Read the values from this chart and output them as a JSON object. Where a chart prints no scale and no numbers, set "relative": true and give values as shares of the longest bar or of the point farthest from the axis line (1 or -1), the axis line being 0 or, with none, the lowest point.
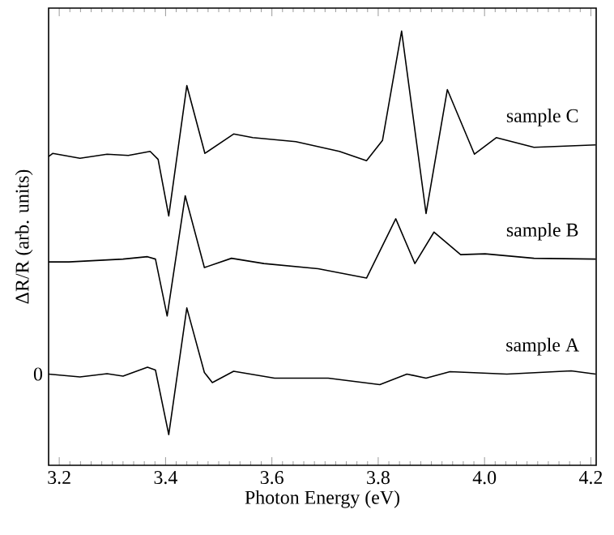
{
  "chart_data": {
    "type": "line",
    "relative": true,
    "xlabel": "Photon Energy (eV)",
    "ylabel": "ΔR/R (arb. units)",
    "xlim": [
      3.18,
      4.21
    ],
    "xticks": [
      3.2,
      3.4,
      3.6,
      3.8,
      {
        "value": 4,
        "label": "4.0"
      },
      4.2
    ],
    "marker": "none",
    "line_style": "solid",
    "legend": false,
    "grid": false,
    "annotations": [
      "0"
    ],
    "series": [
      {
        "name": "sample C",
        "color": "#000000",
        "x": [
          3.18,
          3.188,
          3.239,
          3.29,
          3.33,
          3.371,
          3.386,
          3.406,
          3.44,
          3.474,
          3.528,
          3.564,
          3.645,
          3.727,
          3.778,
          3.808,
          3.844,
          3.89,
          3.93,
          3.981,
          4.022,
          4.093,
          4.209
        ],
        "values": [
          0.689,
          0.697,
          0.685,
          0.695,
          0.692,
          0.702,
          0.682,
          0.542,
          0.865,
          0.697,
          0.745,
          0.736,
          0.726,
          0.702,
          0.679,
          0.729,
          1.0,
          0.548,
          0.855,
          0.695,
          0.736,
          0.712,
          0.718
        ]
      },
      {
        "name": "sample B",
        "color": "#000000",
        "x": [
          3.18,
          3.218,
          3.32,
          3.366,
          3.381,
          3.403,
          3.437,
          3.473,
          3.524,
          3.585,
          3.687,
          3.778,
          3.833,
          3.869,
          3.905,
          3.955,
          4.001,
          4.093,
          4.209
        ],
        "values": [
          0.428,
          0.428,
          0.435,
          0.441,
          0.435,
          0.294,
          0.592,
          0.414,
          0.437,
          0.424,
          0.411,
          0.388,
          0.535,
          0.424,
          0.502,
          0.446,
          0.448,
          0.437,
          0.435
        ]
      },
      {
        "name": "sample A",
        "color": "#000000",
        "x": [
          3.18,
          3.239,
          3.29,
          3.32,
          3.366,
          3.381,
          3.406,
          3.44,
          3.473,
          3.488,
          3.528,
          3.605,
          3.706,
          3.803,
          3.854,
          3.89,
          3.935,
          4.042,
          4.163,
          4.209
        ],
        "values": [
          0.15,
          0.143,
          0.151,
          0.145,
          0.167,
          0.16,
          0.0,
          0.314,
          0.154,
          0.129,
          0.157,
          0.14,
          0.14,
          0.124,
          0.15,
          0.14,
          0.156,
          0.15,
          0.158,
          0.15
        ]
      }
    ]
  }
}
